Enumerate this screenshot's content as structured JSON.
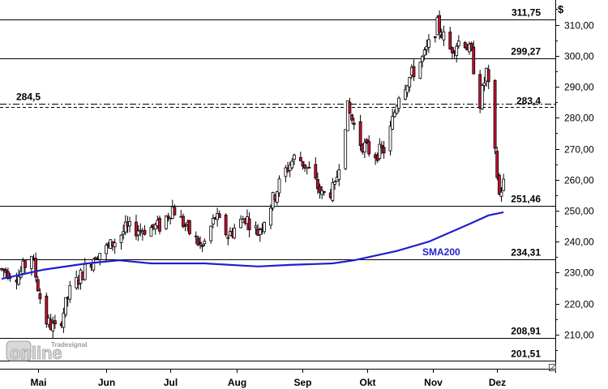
{
  "chart_data": {
    "type": "candlestick",
    "unit": "$",
    "ylim": [
      199,
      318
    ],
    "yticks": [
      210,
      220,
      230,
      240,
      250,
      260,
      270,
      280,
      290,
      300,
      310
    ],
    "ytick_labels": [
      "210,00",
      "220,00",
      "230,00",
      "240,00",
      "250,00",
      "260,00",
      "270,00",
      "280,00",
      "290,00",
      "300,00",
      "310,00"
    ],
    "months": [
      {
        "label": "Mai",
        "day": 17
      },
      {
        "label": "Jun",
        "day": 49
      },
      {
        "label": "Jul",
        "day": 79
      },
      {
        "label": "Aug",
        "day": 110
      },
      {
        "label": "Sep",
        "day": 141
      },
      {
        "label": "Okt",
        "day": 171
      },
      {
        "label": "Nov",
        "day": 202
      },
      {
        "label": "Dez",
        "day": 232
      }
    ],
    "levels": [
      {
        "value": 311.75,
        "label": "311,75",
        "style": "solid"
      },
      {
        "value": 299.27,
        "label": "299,27",
        "style": "solid"
      },
      {
        "value": 283.4,
        "label": "283,4",
        "style": "dashed"
      },
      {
        "value": 284.5,
        "label": "284,5",
        "style": "dashdot"
      },
      {
        "value": 251.46,
        "label": "251,46",
        "style": "solid"
      },
      {
        "value": 234.31,
        "label": "234,31",
        "style": "solid"
      },
      {
        "value": 208.91,
        "label": "208,91",
        "style": "solid"
      },
      {
        "value": 201.51,
        "label": "201,51",
        "style": "solid"
      }
    ],
    "sma": {
      "label": "SMA200",
      "color": "#1f1fd0",
      "points": [
        [
          0,
          228
        ],
        [
          20,
          231
        ],
        [
          40,
          233
        ],
        [
          55,
          234
        ],
        [
          70,
          233
        ],
        [
          95,
          233
        ],
        [
          120,
          232
        ],
        [
          135,
          232.5
        ],
        [
          155,
          233
        ],
        [
          165,
          234
        ],
        [
          185,
          237
        ],
        [
          200,
          240
        ],
        [
          210,
          243
        ],
        [
          220,
          246
        ],
        [
          228,
          248.5
        ],
        [
          235,
          249.5
        ]
      ]
    },
    "candle_anchors": [
      [
        0,
        231
      ],
      [
        8,
        229
      ],
      [
        14,
        236
      ],
      [
        20,
        215
      ],
      [
        26,
        211
      ],
      [
        32,
        224
      ],
      [
        38,
        230
      ],
      [
        44,
        236
      ],
      [
        50,
        238
      ],
      [
        58,
        244
      ],
      [
        66,
        244
      ],
      [
        74,
        245
      ],
      [
        80,
        251
      ],
      [
        88,
        243
      ],
      [
        94,
        238
      ],
      [
        100,
        248
      ],
      [
        106,
        242
      ],
      [
        114,
        248
      ],
      [
        120,
        243
      ],
      [
        126,
        252
      ],
      [
        132,
        262
      ],
      [
        138,
        268
      ],
      [
        144,
        263
      ],
      [
        150,
        255
      ],
      [
        156,
        257
      ],
      [
        162,
        283
      ],
      [
        168,
        272
      ],
      [
        174,
        268
      ],
      [
        180,
        270
      ],
      [
        186,
        288
      ],
      [
        192,
        294
      ],
      [
        198,
        300
      ],
      [
        204,
        310
      ],
      [
        210,
        302
      ],
      [
        216,
        306
      ],
      [
        220,
        300
      ],
      [
        224,
        285
      ],
      [
        227,
        295
      ],
      [
        229,
        284
      ],
      [
        231,
        268
      ],
      [
        233,
        255
      ],
      [
        235,
        259
      ]
    ],
    "colors": {
      "up": "#ffffff",
      "down": "#c8102e",
      "wick": "#000000"
    },
    "watermark": {
      "main": "online",
      "sub": "Tradesignal"
    }
  }
}
